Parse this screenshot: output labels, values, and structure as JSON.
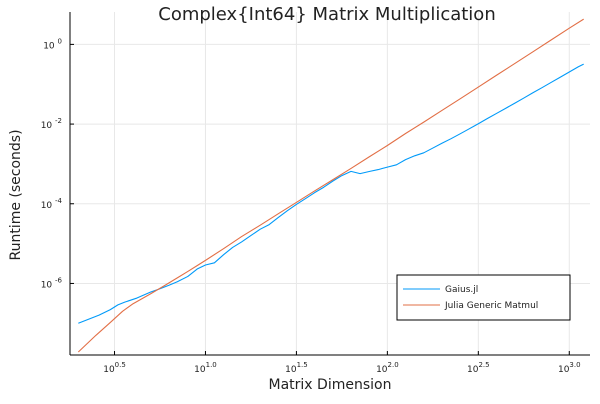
{
  "chart_data": {
    "type": "line",
    "title": "Complex{Int64} Matrix Multiplication",
    "xlabel": "Matrix Dimension",
    "ylabel": "Runtime (seconds)",
    "x_scale": "log10",
    "y_scale": "log10",
    "xlim": [
      1.8,
      1300
    ],
    "ylim": [
      1.6e-08,
      6.5
    ],
    "grid": true,
    "legend_position": "bottom-right",
    "x_ticks": [
      {
        "base": "10",
        "exp": "0.5",
        "value": 3.1623
      },
      {
        "base": "10",
        "exp": "1.0",
        "value": 10
      },
      {
        "base": "10",
        "exp": "1.5",
        "value": 31.623
      },
      {
        "base": "10",
        "exp": "2.0",
        "value": 100
      },
      {
        "base": "10",
        "exp": "2.5",
        "value": 316.23
      },
      {
        "base": "10",
        "exp": "3.0",
        "value": 1000
      }
    ],
    "y_ticks": [
      {
        "base": "10",
        "exp": "-6",
        "value": 1e-06
      },
      {
        "base": "10",
        "exp": "-4",
        "value": 0.0001
      },
      {
        "base": "10",
        "exp": "-2",
        "value": 0.01
      },
      {
        "base": "10",
        "exp": "0",
        "value": 1
      }
    ],
    "series": [
      {
        "name": "Gaius.jl",
        "color": "#009af9",
        "points": [
          [
            2.0,
            1e-07
          ],
          [
            2.6,
            1.6e-07
          ],
          [
            3.0,
            2.2e-07
          ],
          [
            3.3,
            2.9e-07
          ],
          [
            3.6,
            3.4e-07
          ],
          [
            4.2,
            4.3e-07
          ],
          [
            5.0,
            6.1e-07
          ],
          [
            5.6,
            7.3e-07
          ],
          [
            6.3,
            9e-07
          ],
          [
            7.0,
            1.1e-06
          ],
          [
            8.0,
            1.5e-06
          ],
          [
            9.0,
            2.3e-06
          ],
          [
            10.0,
            2.9e-06
          ],
          [
            11.2,
            3.3e-06
          ],
          [
            12.6,
            5.3e-06
          ],
          [
            14.1,
            8e-06
          ],
          [
            15.8,
            1.1e-05
          ],
          [
            17.8,
            1.6e-05
          ],
          [
            20.0,
            2.3e-05
          ],
          [
            22.4,
            3e-05
          ],
          [
            25.1,
            4.5e-05
          ],
          [
            28.2,
            6.7e-05
          ],
          [
            31.6,
            9.6e-05
          ],
          [
            35.5,
            0.000135
          ],
          [
            39.8,
            0.00019
          ],
          [
            44.7,
            0.00026
          ],
          [
            50.1,
            0.00037
          ],
          [
            56.2,
            0.00051
          ],
          [
            63.1,
            0.00065
          ],
          [
            70.8,
            0.00057
          ],
          [
            80.0,
            0.00065
          ],
          [
            89.1,
            0.00072
          ],
          [
            100.0,
            0.00083
          ],
          [
            112.2,
            0.00095
          ],
          [
            125.9,
            0.00128
          ],
          [
            141.3,
            0.0016
          ],
          [
            158.5,
            0.0019
          ],
          [
            177.8,
            0.0025
          ],
          [
            199.5,
            0.0033
          ],
          [
            223.9,
            0.0043
          ],
          [
            251.2,
            0.0057
          ],
          [
            281.8,
            0.0076
          ],
          [
            316.2,
            0.0102
          ],
          [
            354.8,
            0.0138
          ],
          [
            398.1,
            0.0185
          ],
          [
            446.7,
            0.0248
          ],
          [
            501.2,
            0.0334
          ],
          [
            562.3,
            0.045
          ],
          [
            631.0,
            0.061
          ],
          [
            707.9,
            0.082
          ],
          [
            794.3,
            0.111
          ],
          [
            891.3,
            0.15
          ],
          [
            1000.0,
            0.203
          ],
          [
            1122.0,
            0.275
          ],
          [
            1200.0,
            0.32
          ]
        ]
      },
      {
        "name": "Julia Generic Matmul",
        "color": "#e26f46",
        "points": [
          [
            2.0,
            1.9e-08
          ],
          [
            2.5,
            5e-08
          ],
          [
            3.0,
            1.05e-07
          ],
          [
            3.5,
            2e-07
          ],
          [
            4.0,
            3.1e-07
          ],
          [
            5.0,
            5.5e-07
          ],
          [
            6.0,
            9e-07
          ],
          [
            7.0,
            1.38e-06
          ],
          [
            8.0,
            2e-06
          ],
          [
            9.0,
            2.8e-06
          ],
          [
            10.0,
            3.8e-06
          ],
          [
            12.6,
            7.5e-06
          ],
          [
            15.8,
            1.5e-05
          ],
          [
            20.0,
            2.9e-05
          ],
          [
            25.1,
            5.6e-05
          ],
          [
            31.6,
            0.000108
          ],
          [
            39.8,
            0.00021
          ],
          [
            50.1,
            0.0004
          ],
          [
            63.1,
            0.00077
          ],
          [
            79.4,
            0.0015
          ],
          [
            100.0,
            0.0029
          ],
          [
            125.9,
            0.0058
          ],
          [
            158.5,
            0.0112
          ],
          [
            199.5,
            0.022
          ],
          [
            251.2,
            0.043
          ],
          [
            316.2,
            0.085
          ],
          [
            398.1,
            0.168
          ],
          [
            501.2,
            0.33
          ],
          [
            631.0,
            0.65
          ],
          [
            794.3,
            1.29
          ],
          [
            1000.0,
            2.55
          ],
          [
            1200.0,
            4.3
          ]
        ]
      }
    ]
  }
}
